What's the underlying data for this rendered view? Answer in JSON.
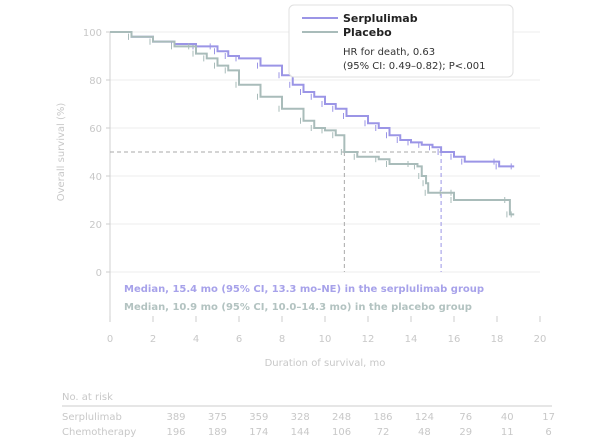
{
  "chart_data": {
    "type": "line",
    "subtype": "kaplan-meier",
    "xlabel": "Duration of survival, mo",
    "ylabel": "Overall survival (%)",
    "xlim": [
      0,
      20
    ],
    "ylim": [
      0,
      100
    ],
    "xticks": [
      "0",
      "2",
      "4",
      "6",
      "8",
      "10",
      "12",
      "14",
      "16",
      "18",
      "20"
    ],
    "yticks": [
      "0",
      "20",
      "40",
      "60",
      "80",
      "100"
    ],
    "grid": true,
    "legend_position": "top-right",
    "legend": {
      "hr_line1": "HR for death, 0.63",
      "hr_line2": "(95% CI: 0.49–0.82); P<.001"
    },
    "series": [
      {
        "name": "Serplulimab",
        "color": "#9b95e6",
        "median": 15.4,
        "x": [
          0,
          1,
          2,
          3,
          4,
          4.8,
          5,
          5.5,
          6,
          7,
          8,
          8.5,
          9,
          9.5,
          10,
          10.5,
          11,
          12,
          12.5,
          13,
          13.5,
          14,
          14.5,
          15,
          15.4,
          16,
          16.5,
          18,
          18.1,
          18.8
        ],
        "y": [
          100,
          98,
          96,
          95,
          94,
          94,
          92,
          90,
          89,
          86,
          82,
          78,
          75,
          73,
          70,
          68,
          65,
          62,
          60,
          57,
          55,
          54,
          53,
          52,
          50,
          48,
          46,
          46,
          44,
          44
        ]
      },
      {
        "name": "Placebo",
        "color": "#a9bcba",
        "median": 10.9,
        "x": [
          0,
          1,
          2,
          3,
          3.8,
          4,
          4.5,
          5,
          5.5,
          6,
          7,
          8,
          9,
          9.5,
          10,
          10.5,
          10.9,
          11.5,
          12.5,
          13,
          14,
          14.3,
          14.5,
          14.7,
          14.8,
          15.5,
          16,
          16,
          18.5,
          18.6,
          18.8
        ],
        "y": [
          100,
          98,
          96,
          94,
          94,
          91,
          89,
          86,
          84,
          78,
          73,
          68,
          63,
          60,
          59,
          57,
          50,
          48,
          47,
          45,
          45,
          44,
          40,
          37,
          33,
          33,
          33,
          30,
          30,
          24,
          24
        ]
      }
    ],
    "annotations": [
      "Median, 15.4 mo (95% CI, 13.3 mo-NE) in the serplulimab group",
      "Median, 10.9 mo (95% CI, 10.0–14.3 mo) in the placebo group"
    ],
    "risk_table": {
      "title": "No. at risk",
      "rows": [
        {
          "label": "Serplulimab",
          "values": [
            "389",
            "375",
            "359",
            "328",
            "248",
            "186",
            "124",
            "76",
            "40",
            "17"
          ]
        },
        {
          "label": "Chemotherapy",
          "values": [
            "196",
            "189",
            "174",
            "144",
            "106",
            "72",
            "48",
            "29",
            "11",
            "6"
          ]
        }
      ]
    }
  }
}
